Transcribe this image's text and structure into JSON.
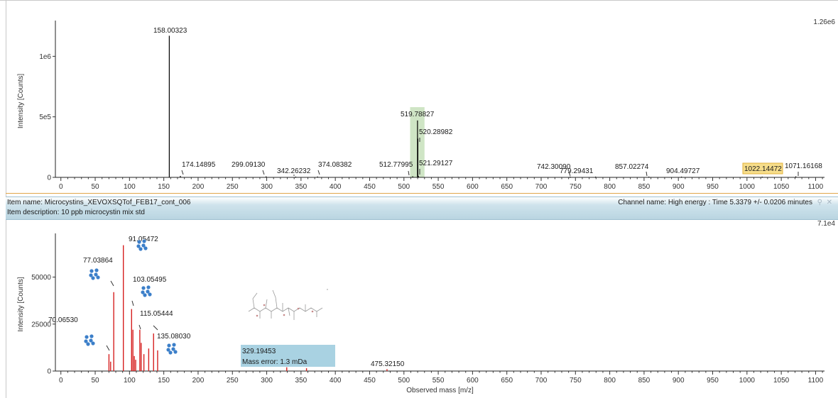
{
  "colors": {
    "top_peak": "#000000",
    "bottom_peak": "#d62020",
    "highlight_band": "#cfe5c5",
    "label_highlight": "#f6dd8a",
    "label_highlight_border": "#e3b13b",
    "tooltip_bg": "#a9d2e2",
    "fragment_icon": "#3c7fc9",
    "divider": "#e1a64a",
    "info_bar": "#c4dce6"
  },
  "info_bar": {
    "item_name": "Item name: Microcystins_XEVOXSQTof_FEB17_cont_006",
    "item_description": "Item description: 10 ppb microcystin mix std",
    "channel_name": "Channel name: High energy : Time 5.3379 +/- 0.0206 minutes",
    "pin_icon": "pin-icon",
    "close_icon": "close-icon"
  },
  "tooltip": {
    "mz": "329.19453",
    "mass_error": "Mass error: 1.3 mDa"
  },
  "chart_data": [
    {
      "type": "bar",
      "title": "",
      "xlabel": "",
      "ylabel": "Intensity [Counts]",
      "xlim": [
        -8,
        1113
      ],
      "ylim": [
        0,
        1260000
      ],
      "scale_label": "1.26e6",
      "x_ticks": [
        0,
        50,
        100,
        150,
        200,
        250,
        300,
        350,
        400,
        450,
        500,
        550,
        600,
        650,
        700,
        750,
        800,
        850,
        900,
        950,
        1000,
        1050,
        1100
      ],
      "y_ticks": [
        {
          "value": 0,
          "label": "0"
        },
        {
          "value": 500000,
          "label": "5e5"
        },
        {
          "value": 1000000,
          "label": "1e6"
        }
      ],
      "highlight_x": [
        509,
        530
      ],
      "peaks": [
        {
          "mz": 158.00323,
          "intensity": 1170000,
          "label": "158.00323"
        },
        {
          "mz": 174.14895,
          "intensity": 12000,
          "label": "174.14895"
        },
        {
          "mz": 299.0913,
          "intensity": 8000,
          "label": "299.09130"
        },
        {
          "mz": 342.26232,
          "intensity": 6000,
          "label": "342.26232"
        },
        {
          "mz": 374.08382,
          "intensity": 7000,
          "label": "374.08382"
        },
        {
          "mz": 512.77995,
          "intensity": 9000,
          "label": "512.77995"
        },
        {
          "mz": 519.78827,
          "intensity": 470000,
          "label": "519.78827"
        },
        {
          "mz": 520.28982,
          "intensity": 320000,
          "label": "520.28982"
        },
        {
          "mz": 521.29127,
          "intensity": 10000,
          "label": "521.29127"
        },
        {
          "mz": 742.3009,
          "intensity": 6000,
          "label": "742.30090"
        },
        {
          "mz": 779.29431,
          "intensity": 4000,
          "label": "779.29431"
        },
        {
          "mz": 857.02274,
          "intensity": 6000,
          "label": "857.02274"
        },
        {
          "mz": 904.49727,
          "intensity": 4000,
          "label": "904.49727"
        },
        {
          "mz": 1022.14472,
          "intensity": 4000,
          "label": "1022.14472",
          "highlight": true
        },
        {
          "mz": 1071.16168,
          "intensity": 8000,
          "label": "1071.16168"
        }
      ]
    },
    {
      "type": "bar",
      "title": "",
      "xlabel": "Observed mass [m/z]",
      "ylabel": "Intensity [Counts]",
      "xlim": [
        -8,
        1113
      ],
      "ylim": [
        0,
        71000
      ],
      "scale_label": "7.1e4",
      "x_ticks": [
        0,
        50,
        100,
        150,
        200,
        250,
        300,
        350,
        400,
        450,
        500,
        550,
        600,
        650,
        700,
        750,
        800,
        850,
        900,
        950,
        1000,
        1050,
        1100
      ],
      "y_ticks": [
        {
          "value": 0,
          "label": "0"
        },
        {
          "value": 25000,
          "label": "25000"
        },
        {
          "value": 50000,
          "label": "50000"
        }
      ],
      "peaks": [
        {
          "mz": 70.0653,
          "intensity": 9000,
          "label": "70.06530",
          "fragment": true
        },
        {
          "mz": 72.5,
          "intensity": 5000
        },
        {
          "mz": 77.03864,
          "intensity": 42000,
          "label": "77.03864",
          "fragment": true
        },
        {
          "mz": 91.05472,
          "intensity": 67000,
          "label": "91.05472",
          "fragment": true
        },
        {
          "mz": 103.05495,
          "intensity": 33000,
          "label": "103.05495",
          "fragment": true
        },
        {
          "mz": 105.0,
          "intensity": 22000
        },
        {
          "mz": 107.0,
          "intensity": 8000
        },
        {
          "mz": 109.0,
          "intensity": 6000
        },
        {
          "mz": 115.05444,
          "intensity": 22000,
          "label": "115.05444",
          "fragment": true
        },
        {
          "mz": 117.0,
          "intensity": 15000
        },
        {
          "mz": 121.0,
          "intensity": 9000
        },
        {
          "mz": 128.0,
          "intensity": 12000
        },
        {
          "mz": 135.0803,
          "intensity": 20000,
          "label": "135.08030",
          "fragment": true
        },
        {
          "mz": 141.0,
          "intensity": 11000
        },
        {
          "mz": 329.19453,
          "intensity": 2000
        },
        {
          "mz": 358.0,
          "intensity": 1500
        },
        {
          "mz": 475.3215,
          "intensity": 1000,
          "label": "475.32150"
        }
      ]
    }
  ]
}
